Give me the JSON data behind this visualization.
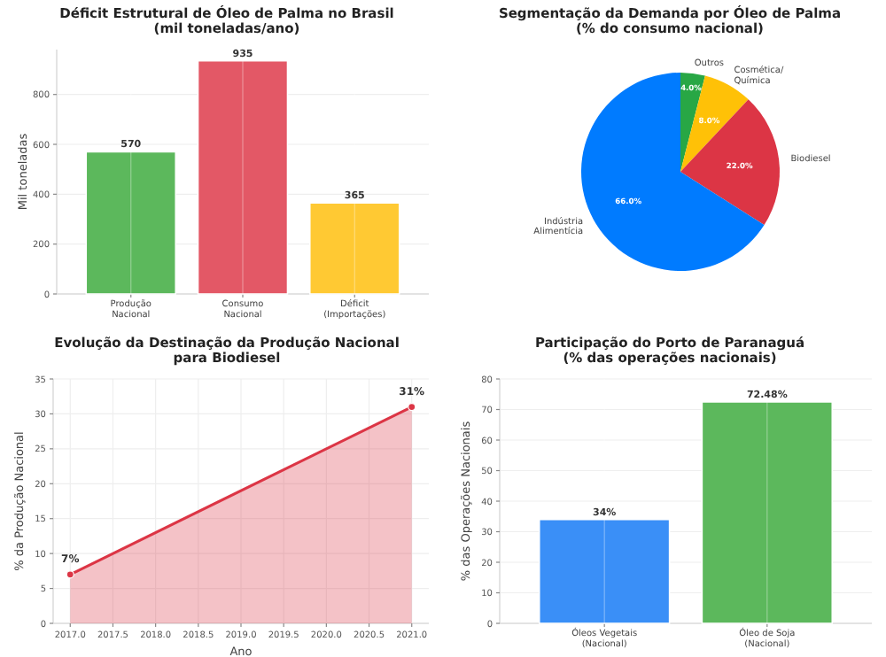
{
  "chart_data": [
    {
      "type": "bar",
      "title": "Déficit Estrutural de Óleo de Palma no Brasil\n(mil toneladas/ano)",
      "ylabel": "Mil toneladas",
      "categories": [
        "Produção\nNacional",
        "Consumo\nNacional",
        "Déficit\n(Importações)"
      ],
      "values": [
        570,
        935,
        365
      ],
      "colors": [
        "#5cb85c",
        "#e35866",
        "#ffc933"
      ],
      "ylim": [
        0,
        980
      ],
      "yticks": [
        0,
        200,
        400,
        600,
        800
      ],
      "grid": true,
      "data_labels": true
    },
    {
      "type": "pie",
      "title": "Segmentação da Demanda por Óleo de Palma\n(% do consumo nacional)",
      "categories": [
        "Outros",
        "Cosmética/\nQuímica",
        "Biodiesel",
        "Indústria\nAlimentícia"
      ],
      "values": [
        4,
        8,
        22,
        66
      ],
      "colors": [
        "#28a745",
        "#ffc107",
        "#dc3545",
        "#007bff"
      ],
      "value_labels": [
        "4.0%",
        "8.0%",
        "22.0%",
        "66.0%"
      ]
    },
    {
      "type": "area",
      "title": "Evolução da Destinação da Produção Nacional\npara Biodiesel",
      "xlabel": "Ano",
      "ylabel": "% da Produção Nacional",
      "x": [
        2017,
        2021
      ],
      "series": [
        {
          "color": "#dc3545",
          "values": [
            7,
            31
          ],
          "value_labels": [
            "7%",
            "31%"
          ]
        }
      ],
      "marker": "circle",
      "xlim": [
        2016.8,
        2021.2
      ],
      "xticks": [
        {
          "value": 2017,
          "label": "2017.0"
        },
        {
          "value": 2017.5,
          "label": "2017.5"
        },
        {
          "value": 2018,
          "label": "2018.0"
        },
        {
          "value": 2018.5,
          "label": "2018.5"
        },
        {
          "value": 2019,
          "label": "2019.0"
        },
        {
          "value": 2019.5,
          "label": "2019.5"
        },
        {
          "value": 2020,
          "label": "2020.0"
        },
        {
          "value": 2020.5,
          "label": "2020.5"
        },
        {
          "value": 2021,
          "label": "2021.0"
        }
      ],
      "ylim": [
        0,
        35
      ],
      "yticks": [
        0,
        5,
        10,
        15,
        20,
        25,
        30,
        35
      ],
      "grid": true
    },
    {
      "type": "bar",
      "title": "Participação do Porto de Paranaguá\n(% das operações nacionais)",
      "ylabel": "% das Operações Nacionais",
      "categories": [
        "Óleos Vegetais\n(Nacional)",
        "Óleo de Soja\n(Nacional)"
      ],
      "values": [
        34,
        72.48
      ],
      "colors": [
        "#3a8ff7",
        "#5cb85c"
      ],
      "value_labels": [
        "34%",
        "72.48%"
      ],
      "ylim": [
        0,
        80
      ],
      "yticks": [
        0,
        10,
        20,
        30,
        40,
        50,
        60,
        70,
        80
      ],
      "grid": true
    }
  ]
}
